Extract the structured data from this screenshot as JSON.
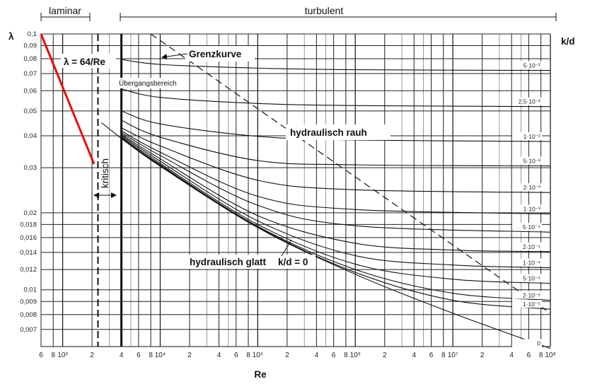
{
  "chart_data": {
    "type": "line",
    "title": "",
    "xlabel": "Re",
    "ylabel": "λ",
    "right_axis_label": "k/d",
    "x_scale": "log",
    "y_scale": "log",
    "xlim": [
      600,
      100000000
    ],
    "ylim": [
      0.006,
      0.1
    ],
    "grid": true,
    "regions": {
      "laminar": "laminar",
      "turbulent": "turbulent",
      "critical": "kritisch",
      "transition": "Übergangsbereich"
    },
    "annotations": {
      "laminar_formula": "λ = 64/Re",
      "limit_curve": "Grenzkurve",
      "rough": "hydraulisch rauh",
      "smooth": "hydraulisch glatt",
      "smooth_kd": "k/d = 0"
    },
    "x_ticks": [
      {
        "v": 600,
        "t": "6"
      },
      {
        "v": 800,
        "t": "8"
      },
      {
        "v": 1000,
        "t": "10³"
      },
      {
        "v": 2000,
        "t": "2"
      },
      {
        "v": 4000,
        "t": "4"
      },
      {
        "v": 6000,
        "t": "6"
      },
      {
        "v": 8000,
        "t": "8"
      },
      {
        "v": 10000,
        "t": "10⁴"
      },
      {
        "v": 20000,
        "t": "2"
      },
      {
        "v": 40000,
        "t": "4"
      },
      {
        "v": 60000,
        "t": "6"
      },
      {
        "v": 80000,
        "t": "8"
      },
      {
        "v": 100000,
        "t": "10⁵"
      },
      {
        "v": 200000,
        "t": "2"
      },
      {
        "v": 400000,
        "t": "4"
      },
      {
        "v": 600000,
        "t": "6"
      },
      {
        "v": 800000,
        "t": "8"
      },
      {
        "v": 1000000,
        "t": "10⁶"
      },
      {
        "v": 2000000,
        "t": "2"
      },
      {
        "v": 4000000,
        "t": "4"
      },
      {
        "v": 6000000,
        "t": "6"
      },
      {
        "v": 8000000,
        "t": "8"
      },
      {
        "v": 10000000,
        "t": "10⁷"
      },
      {
        "v": 20000000,
        "t": "2"
      },
      {
        "v": 40000000,
        "t": "4"
      },
      {
        "v": 60000000,
        "t": "6"
      },
      {
        "v": 80000000,
        "t": "8"
      },
      {
        "v": 100000000,
        "t": "10⁸"
      }
    ],
    "y_ticks": [
      {
        "v": 0.1,
        "t": "0,1"
      },
      {
        "v": 0.09,
        "t": "0,09"
      },
      {
        "v": 0.08,
        "t": "0,08"
      },
      {
        "v": 0.07,
        "t": "0,07"
      },
      {
        "v": 0.06,
        "t": "0,06"
      },
      {
        "v": 0.05,
        "t": "0,05"
      },
      {
        "v": 0.04,
        "t": "0,04"
      },
      {
        "v": 0.03,
        "t": "0,03"
      },
      {
        "v": 0.02,
        "t": "0,02"
      },
      {
        "v": 0.018,
        "t": "0,018"
      },
      {
        "v": 0.016,
        "t": "0,016"
      },
      {
        "v": 0.014,
        "t": "0,014"
      },
      {
        "v": 0.012,
        "t": "0,012"
      },
      {
        "v": 0.01,
        "t": "0,01"
      },
      {
        "v": 0.009,
        "t": "0,009"
      },
      {
        "v": 0.008,
        "t": "0,008"
      },
      {
        "v": 0.007,
        "t": "0,007"
      }
    ],
    "vertical_markers": [
      {
        "name": "critical-re-line",
        "x": 2300,
        "style": "dash"
      },
      {
        "name": "turbulent-start-line",
        "x": 4000,
        "style": "bold"
      }
    ],
    "laminar_line": {
      "x": [
        600,
        2100
      ],
      "y": [
        0.1,
        0.031
      ]
    },
    "critical_curve": {
      "x": [
        2500,
        4000
      ],
      "y": [
        0.045,
        0.039
      ]
    },
    "limit_curve": {
      "x": [
        8000,
        100000000
      ],
      "y": [
        0.1,
        0.0081
      ]
    },
    "series": [
      {
        "kd": 0.05,
        "label": "5·10⁻²",
        "x": [
          4000,
          10000,
          100000,
          1000000,
          100000000
        ],
        "y": [
          0.0795,
          0.076,
          0.0735,
          0.0725,
          0.072
        ]
      },
      {
        "kd": 0.025,
        "label": "2,5·10⁻²",
        "x": [
          4000,
          10000,
          100000,
          1000000,
          100000000
        ],
        "y": [
          0.061,
          0.0565,
          0.0535,
          0.0525,
          0.052
        ]
      },
      {
        "kd": 0.01,
        "label": "1·10⁻²",
        "x": [
          4000,
          10000,
          100000,
          1000000,
          100000000
        ],
        "y": [
          0.05,
          0.0445,
          0.0398,
          0.0385,
          0.038
        ]
      },
      {
        "kd": 0.005,
        "label": "5·10⁻³",
        "x": [
          4000,
          10000,
          100000,
          1000000,
          100000000
        ],
        "y": [
          0.046,
          0.0395,
          0.032,
          0.0308,
          0.0305
        ]
      },
      {
        "kd": 0.002,
        "label": "2·10⁻³",
        "x": [
          4000,
          10000,
          100000,
          1000000,
          100000000
        ],
        "y": [
          0.043,
          0.0365,
          0.0268,
          0.0246,
          0.024
        ]
      },
      {
        "kd": 0.001,
        "label": "1·10⁻³",
        "x": [
          4000,
          10000,
          100000,
          1000000,
          100000000
        ],
        "y": [
          0.0418,
          0.0345,
          0.0232,
          0.0206,
          0.0198
        ]
      },
      {
        "kd": 0.0005,
        "label": "5·10⁻⁴",
        "x": [
          4000,
          10000,
          100000,
          1000000,
          100000000
        ],
        "y": [
          0.0412,
          0.0335,
          0.0214,
          0.0178,
          0.0168
        ]
      },
      {
        "kd": 0.0002,
        "label": "2·10⁻⁴",
        "x": [
          4000,
          10000,
          100000,
          1000000,
          10000000,
          100000000
        ],
        "y": [
          0.0406,
          0.0325,
          0.0195,
          0.0152,
          0.0143,
          0.0141
        ]
      },
      {
        "kd": 0.0001,
        "label": "1·10⁻⁴",
        "x": [
          4000,
          10000,
          100000,
          1000000,
          10000000,
          100000000
        ],
        "y": [
          0.0402,
          0.0318,
          0.0186,
          0.0136,
          0.0125,
          0.0122
        ]
      },
      {
        "kd": 5e-05,
        "label": "5·10⁻⁵",
        "x": [
          4000,
          10000,
          100000,
          1000000,
          10000000,
          100000000
        ],
        "y": [
          0.0398,
          0.0312,
          0.018,
          0.0126,
          0.011,
          0.0106
        ]
      },
      {
        "kd": 2e-05,
        "label": "2·10⁻⁵",
        "x": [
          4000,
          10000,
          100000,
          1000000,
          10000000,
          100000000
        ],
        "y": [
          0.0394,
          0.0308,
          0.0177,
          0.012,
          0.0097,
          0.0091
        ]
      },
      {
        "kd": 1e-05,
        "label": "1·10⁻⁵",
        "x": [
          4000,
          10000,
          100000,
          1000000,
          10000000,
          100000000
        ],
        "y": [
          0.0392,
          0.0306,
          0.0176,
          0.0117,
          0.0091,
          0.0084
        ]
      },
      {
        "kd": 0,
        "label": "0",
        "x": [
          4000,
          10000,
          100000,
          1000000,
          10000000,
          100000000
        ],
        "y": [
          0.039,
          0.0304,
          0.0175,
          0.0115,
          0.0081,
          0.0059
        ]
      }
    ]
  }
}
